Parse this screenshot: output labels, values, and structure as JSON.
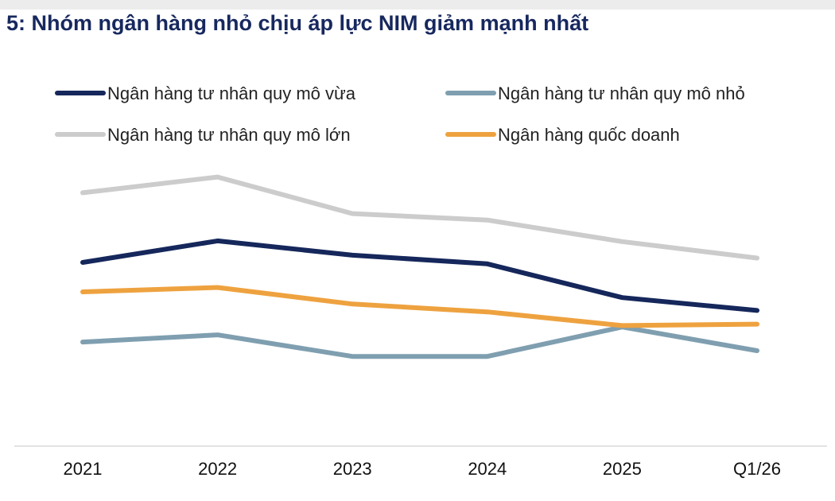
{
  "title": "5: Nhóm ngân hàng nhỏ chịu áp lực NIM giảm mạnh nhất",
  "chart_data": {
    "type": "line",
    "title": "5: Nhóm ngân hàng nhỏ chịu áp lực NIM giảm mạnh nhất",
    "xlabel": "",
    "ylabel": "",
    "categories": [
      "2021",
      "2022",
      "2023",
      "2024",
      "2025",
      "Q1/26"
    ],
    "y_axis_visible": false,
    "grid": false,
    "legend_position": "top",
    "series": [
      {
        "name": "Ngân hàng tư nhân quy mô vừa",
        "color": "#15275b",
        "values": [
          3.56,
          3.86,
          3.66,
          3.54,
          3.07,
          2.89
        ]
      },
      {
        "name": "Ngân hàng tư nhân quy mô nhỏ",
        "color": "#7f9fb0",
        "values": [
          2.45,
          2.55,
          2.25,
          2.25,
          2.66,
          2.33
        ]
      },
      {
        "name": "Ngân hàng tư nhân quy mô lớn",
        "color": "#cccccc",
        "values": [
          4.53,
          4.75,
          4.24,
          4.15,
          3.85,
          3.62
        ]
      },
      {
        "name": "Ngân hàng quốc doanh",
        "color": "#eea23f",
        "values": [
          3.15,
          3.21,
          2.98,
          2.87,
          2.68,
          2.7
        ]
      }
    ],
    "ylim": [
      1.0,
      5.0
    ]
  }
}
